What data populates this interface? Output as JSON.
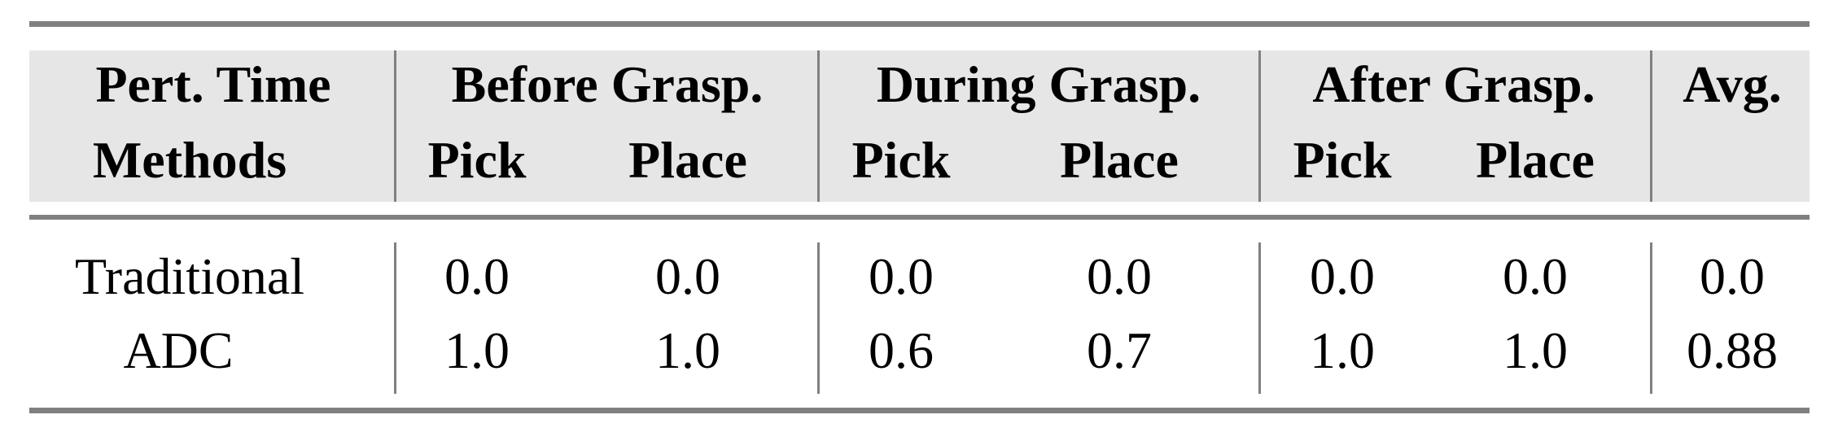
{
  "header": {
    "row1": [
      "Pert. Time",
      "Before Grasp.",
      "During Grasp.",
      "After Grasp.",
      "Avg."
    ],
    "row2": [
      "Methods",
      "Pick",
      "Place",
      "Pick",
      "Place",
      "Pick",
      "Place"
    ]
  },
  "rows": [
    {
      "method": "Traditional",
      "values": [
        "0.0",
        "0.0",
        "0.0",
        "0.0",
        "0.0",
        "0.0",
        "0.0"
      ]
    },
    {
      "method": "ADC",
      "values": [
        "1.0",
        "1.0",
        "0.6",
        "0.7",
        "1.0",
        "1.0",
        "0.88"
      ]
    }
  ],
  "colors": {
    "header_bg": "#e6e6e6",
    "rules": "#808080"
  }
}
